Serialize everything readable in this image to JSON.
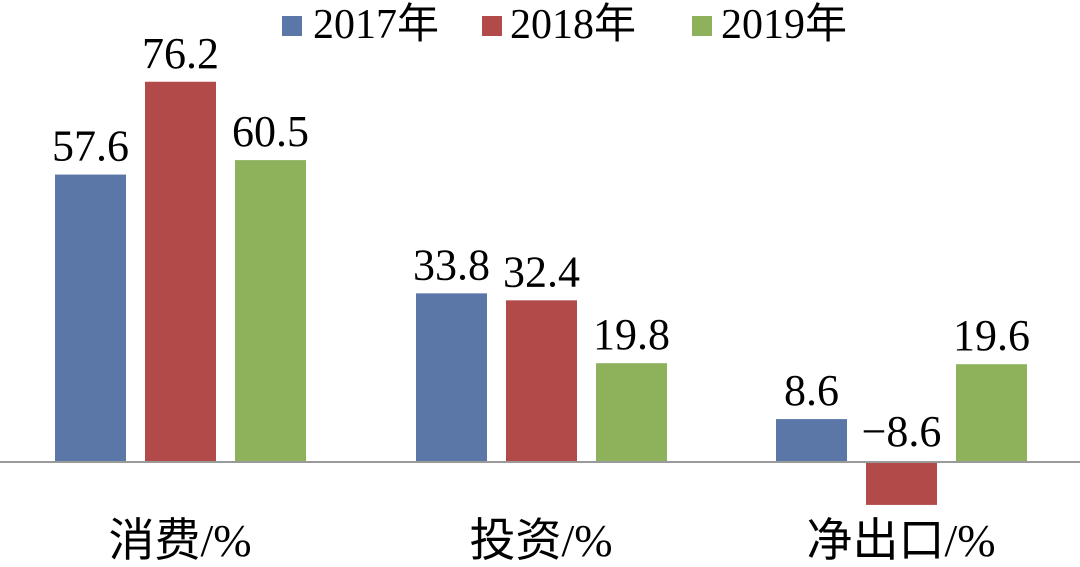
{
  "chart_data": {
    "type": "bar",
    "categories": [
      "消费/%",
      "投资/%",
      "净出口/%"
    ],
    "series": [
      {
        "name": "2017年",
        "color": "#5b77a8",
        "values": [
          57.6,
          33.8,
          8.6
        ],
        "labels": [
          "57.6",
          "33.8",
          "8.6"
        ]
      },
      {
        "name": "2018年",
        "color": "#b34a4a",
        "values": [
          76.2,
          32.4,
          -8.6
        ],
        "labels": [
          "76.2",
          "32.4",
          "−8.6"
        ]
      },
      {
        "name": "2019年",
        "color": "#8db25b",
        "values": [
          60.5,
          19.8,
          19.6
        ],
        "labels": [
          "60.5",
          "19.8",
          "19.6"
        ]
      }
    ],
    "ylim": [
      -10,
      80
    ],
    "grid": false,
    "legend_position": "top-center"
  }
}
